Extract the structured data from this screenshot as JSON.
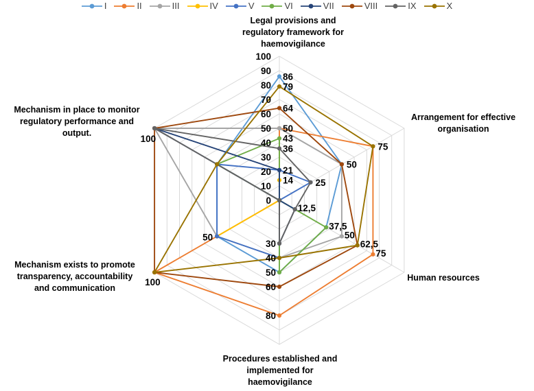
{
  "legend": {
    "items": [
      {
        "label": "I",
        "color": "#5B9BD5"
      },
      {
        "label": "II",
        "color": "#ED7D31"
      },
      {
        "label": "III",
        "color": "#A5A5A5"
      },
      {
        "label": "IV",
        "color": "#FFC000"
      },
      {
        "label": "V",
        "color": "#4472C4"
      },
      {
        "label": "VI",
        "color": "#70AD47"
      },
      {
        "label": "VII",
        "color": "#264478"
      },
      {
        "label": "VIII",
        "color": "#9E480E"
      },
      {
        "label": "IX",
        "color": "#636363"
      },
      {
        "label": "X",
        "color": "#997300"
      }
    ]
  },
  "chart_data": {
    "type": "radar",
    "axes": [
      {
        "id": "legal",
        "title": "Legal provisions and\nregulatory framework for\nhaemovigilance"
      },
      {
        "id": "arrangement",
        "title": "Arrangement for effective\norganisation"
      },
      {
        "id": "human",
        "title": "Human resources"
      },
      {
        "id": "procedures",
        "title": "Procedures established and\nimplemented for\nhaemovigilance"
      },
      {
        "id": "transparency",
        "title": "Mechanism exists to promote\ntransparency, accountability\nand communication"
      },
      {
        "id": "monitor",
        "title": "Mechanism in place to monitor\nregulatory performance and\noutput."
      }
    ],
    "scale": {
      "min": 0,
      "max": 100,
      "step": 10,
      "tick_labels": [
        "0",
        "10",
        "20",
        "30",
        "40",
        "50",
        "60",
        "70",
        "80",
        "90",
        "100"
      ]
    },
    "series": [
      {
        "name": "I",
        "color": "#5B9BD5",
        "values": [
          86,
          50,
          37.5,
          50,
          50,
          50
        ]
      },
      {
        "name": "II",
        "color": "#ED7D31",
        "values": [
          50,
          75,
          75,
          80,
          100,
          0
        ]
      },
      {
        "name": "III",
        "color": "#A5A5A5",
        "values": [
          50,
          50,
          50,
          40,
          50,
          100
        ]
      },
      {
        "name": "IV",
        "color": "#FFC000",
        "values": [
          14,
          0,
          0,
          0,
          50,
          0
        ]
      },
      {
        "name": "V",
        "color": "#4472C4",
        "values": [
          21,
          25,
          0,
          40,
          50,
          50
        ]
      },
      {
        "name": "VI",
        "color": "#70AD47",
        "values": [
          43,
          0,
          37.5,
          50,
          0,
          50
        ]
      },
      {
        "name": "VII",
        "color": "#264478",
        "values": [
          21,
          0,
          12.5,
          30,
          0,
          100
        ]
      },
      {
        "name": "VIII",
        "color": "#9E480E",
        "values": [
          64,
          50,
          62.5,
          60,
          100,
          100
        ]
      },
      {
        "name": "IX",
        "color": "#636363",
        "values": [
          36,
          25,
          12.5,
          30,
          0,
          100
        ]
      },
      {
        "name": "X",
        "color": "#997300",
        "values": [
          79,
          75,
          62.5,
          40,
          100,
          50
        ]
      }
    ],
    "point_labels": [
      {
        "axis": 0,
        "value": 86,
        "text": "86"
      },
      {
        "axis": 0,
        "value": 79,
        "text": "79"
      },
      {
        "axis": 0,
        "value": 64,
        "text": "64"
      },
      {
        "axis": 0,
        "value": 50,
        "text": "50"
      },
      {
        "axis": 0,
        "value": 43,
        "text": "43"
      },
      {
        "axis": 0,
        "value": 36,
        "text": "36"
      },
      {
        "axis": 0,
        "value": 21,
        "text": "21"
      },
      {
        "axis": 0,
        "value": 14,
        "text": "14"
      },
      {
        "axis": 1,
        "value": 75,
        "text": "75"
      },
      {
        "axis": 1,
        "value": 50,
        "text": "50"
      },
      {
        "axis": 1,
        "value": 25,
        "text": "25"
      },
      {
        "axis": 2,
        "value": 75,
        "text": "75"
      },
      {
        "axis": 2,
        "value": 62.5,
        "text": "62,5"
      },
      {
        "axis": 2,
        "value": 50,
        "text": "50"
      },
      {
        "axis": 2,
        "value": 37.5,
        "text": "37,5"
      },
      {
        "axis": 2,
        "value": 12.5,
        "text": "12,5"
      },
      {
        "axis": 3,
        "value": 80,
        "text": "80"
      },
      {
        "axis": 3,
        "value": 60,
        "text": "60"
      },
      {
        "axis": 3,
        "value": 50,
        "text": "50"
      },
      {
        "axis": 3,
        "value": 40,
        "text": "40"
      },
      {
        "axis": 3,
        "value": 30,
        "text": "30"
      },
      {
        "axis": 4,
        "value": 100,
        "text": "100"
      },
      {
        "axis": 4,
        "value": 50,
        "text": "50"
      },
      {
        "axis": 5,
        "value": 100,
        "text": "100"
      }
    ],
    "layout": {
      "grid": true,
      "legend_position": "top"
    }
  }
}
